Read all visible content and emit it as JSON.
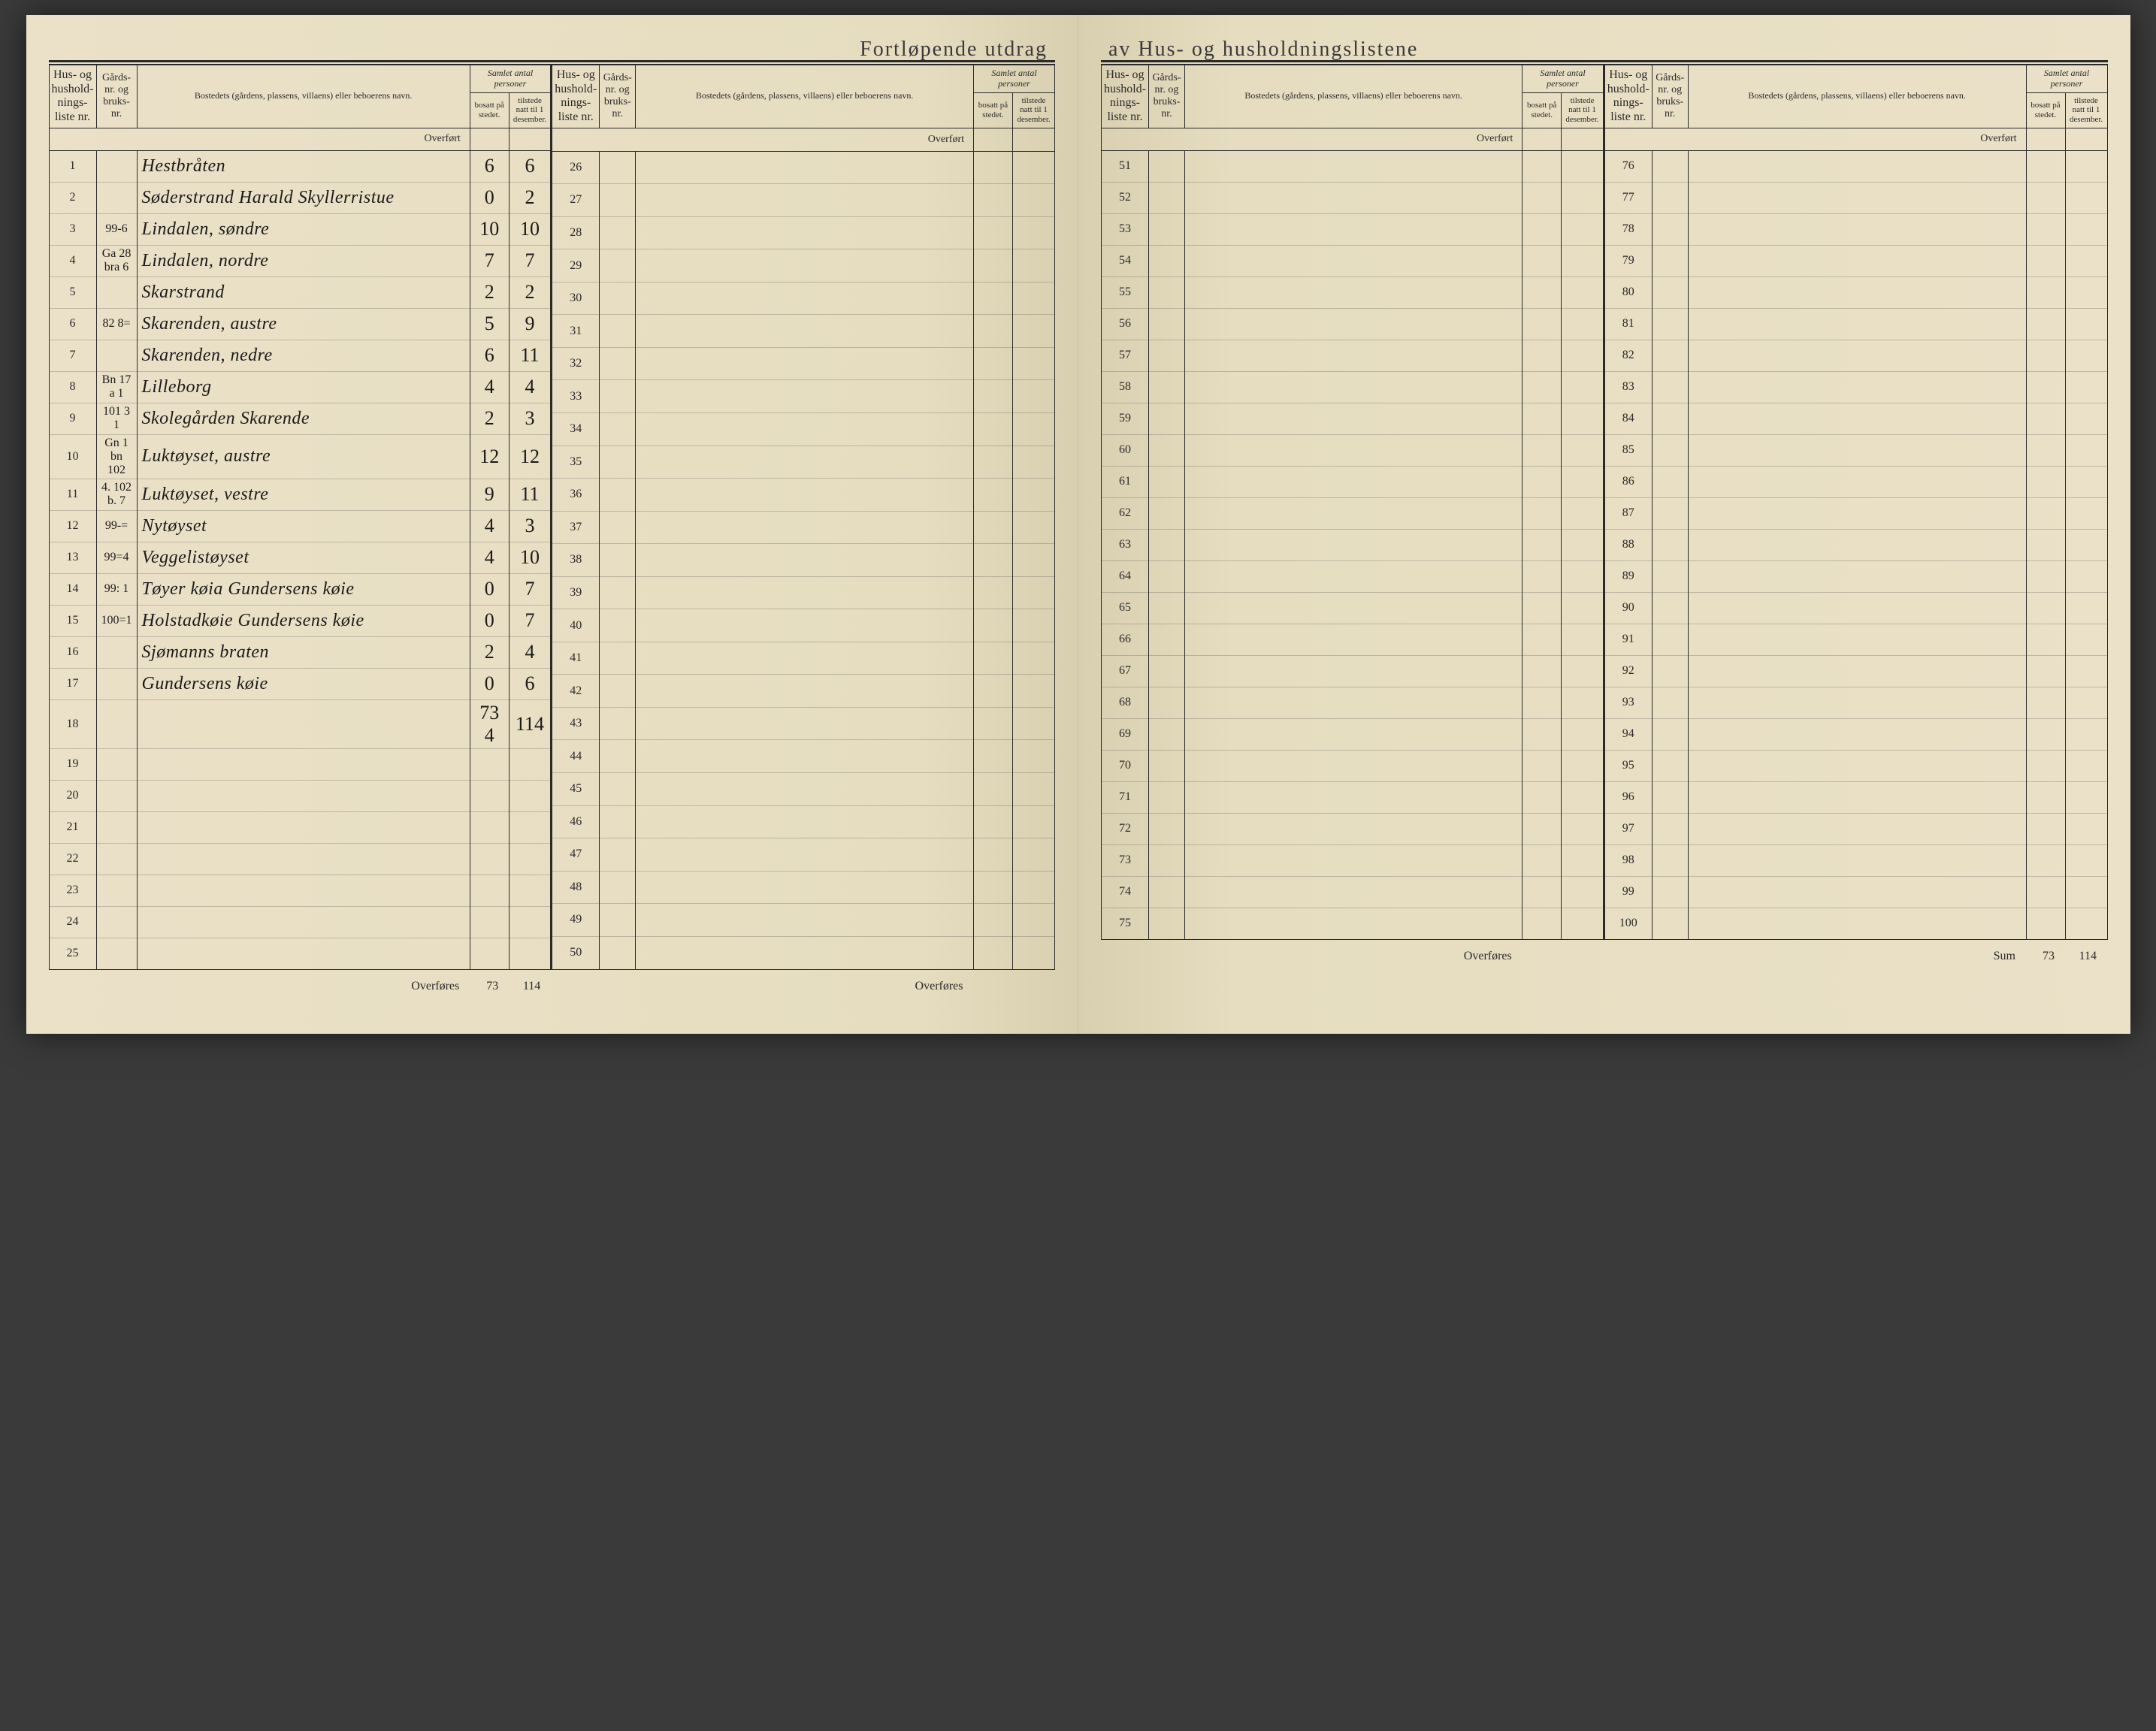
{
  "title_left": "Fortløpende utdrag",
  "title_right": "av Hus- og husholdningslistene",
  "headers": {
    "liste": "Hus- og hushold-nings-liste nr.",
    "gard": "Gårds-nr. og bruks-nr.",
    "bosted": "Bostedets (gårdens, plassens, villaens) eller beboerens navn.",
    "samlet": "Samlet antal personer",
    "bosatt": "bosatt på stedet.",
    "tilstede": "tilstede natt til 1 desember."
  },
  "labels": {
    "overfort": "Overført",
    "overfores": "Overføres",
    "sum": "Sum"
  },
  "left_a": {
    "rows": [
      {
        "n": "1",
        "g": "",
        "name": "Hestbråten",
        "b": "6",
        "t": "6"
      },
      {
        "n": "2",
        "g": "",
        "name": "Søderstrand Harald Skyllerristue",
        "b": "0",
        "t": "2"
      },
      {
        "n": "3",
        "g": "99-6",
        "name": "Lindalen, søndre",
        "b": "10",
        "t": "10"
      },
      {
        "n": "4",
        "g": "Ga 28 bra 6",
        "name": "Lindalen, nordre",
        "b": "7",
        "t": "7"
      },
      {
        "n": "5",
        "g": "",
        "name": "Skarstrand",
        "b": "2",
        "t": "2"
      },
      {
        "n": "6",
        "g": "82 8=",
        "name": "Skarenden, austre",
        "b": "5",
        "t": "9"
      },
      {
        "n": "7",
        "g": "",
        "name": "Skarenden, nedre",
        "b": "6",
        "t": "11"
      },
      {
        "n": "8",
        "g": "Bn 17 a 1",
        "name": "Lilleborg",
        "b": "4",
        "t": "4"
      },
      {
        "n": "9",
        "g": "101 3 1",
        "name": "Skolegården Skarende",
        "b": "2",
        "t": "3"
      },
      {
        "n": "10",
        "g": "Gn 1 bn 102",
        "name": "Luktøyset, austre",
        "b": "12",
        "t": "12"
      },
      {
        "n": "11",
        "g": "4. 102 b. 7",
        "name": "Luktøyset, vestre",
        "b": "9",
        "t": "11"
      },
      {
        "n": "12",
        "g": "99-=",
        "name": "Nytøyset",
        "b": "4",
        "t": "3"
      },
      {
        "n": "13",
        "g": "99=4",
        "name": "Veggelistøyset",
        "b": "4",
        "t": "10"
      },
      {
        "n": "14",
        "g": "99: 1",
        "name": "Tøyer køia Gundersens køie",
        "b": "0",
        "t": "7"
      },
      {
        "n": "15",
        "g": "100=1",
        "name": "Holstadkøie Gundersens køie",
        "b": "0",
        "t": "7"
      },
      {
        "n": "16",
        "g": "",
        "name": "Sjømanns braten",
        "b": "2",
        "t": "4"
      },
      {
        "n": "17",
        "g": "",
        "name": "Gundersens køie",
        "b": "0",
        "t": "6"
      },
      {
        "n": "18",
        "g": "",
        "name": "",
        "b": "73 4",
        "t": "114"
      },
      {
        "n": "19",
        "g": "",
        "name": "",
        "b": "",
        "t": ""
      },
      {
        "n": "20",
        "g": "",
        "name": "",
        "b": "",
        "t": ""
      },
      {
        "n": "21",
        "g": "",
        "name": "",
        "b": "",
        "t": ""
      },
      {
        "n": "22",
        "g": "",
        "name": "",
        "b": "",
        "t": ""
      },
      {
        "n": "23",
        "g": "",
        "name": "",
        "b": "",
        "t": ""
      },
      {
        "n": "24",
        "g": "",
        "name": "",
        "b": "",
        "t": ""
      },
      {
        "n": "25",
        "g": "",
        "name": "",
        "b": "",
        "t": ""
      }
    ],
    "foot_b": "73",
    "foot_t": "114"
  },
  "left_b": {
    "rows": [
      {
        "n": "26"
      },
      {
        "n": "27"
      },
      {
        "n": "28"
      },
      {
        "n": "29"
      },
      {
        "n": "30"
      },
      {
        "n": "31"
      },
      {
        "n": "32"
      },
      {
        "n": "33"
      },
      {
        "n": "34"
      },
      {
        "n": "35"
      },
      {
        "n": "36"
      },
      {
        "n": "37"
      },
      {
        "n": "38"
      },
      {
        "n": "39"
      },
      {
        "n": "40"
      },
      {
        "n": "41"
      },
      {
        "n": "42"
      },
      {
        "n": "43"
      },
      {
        "n": "44"
      },
      {
        "n": "45"
      },
      {
        "n": "46"
      },
      {
        "n": "47"
      },
      {
        "n": "48"
      },
      {
        "n": "49"
      },
      {
        "n": "50"
      }
    ]
  },
  "right_a": {
    "rows": [
      {
        "n": "51"
      },
      {
        "n": "52"
      },
      {
        "n": "53"
      },
      {
        "n": "54"
      },
      {
        "n": "55"
      },
      {
        "n": "56"
      },
      {
        "n": "57"
      },
      {
        "n": "58"
      },
      {
        "n": "59"
      },
      {
        "n": "60"
      },
      {
        "n": "61"
      },
      {
        "n": "62"
      },
      {
        "n": "63"
      },
      {
        "n": "64"
      },
      {
        "n": "65"
      },
      {
        "n": "66"
      },
      {
        "n": "67"
      },
      {
        "n": "68"
      },
      {
        "n": "69"
      },
      {
        "n": "70"
      },
      {
        "n": "71"
      },
      {
        "n": "72"
      },
      {
        "n": "73"
      },
      {
        "n": "74"
      },
      {
        "n": "75"
      }
    ]
  },
  "right_b": {
    "rows": [
      {
        "n": "76"
      },
      {
        "n": "77"
      },
      {
        "n": "78"
      },
      {
        "n": "79"
      },
      {
        "n": "80"
      },
      {
        "n": "81"
      },
      {
        "n": "82"
      },
      {
        "n": "83"
      },
      {
        "n": "84"
      },
      {
        "n": "85"
      },
      {
        "n": "86"
      },
      {
        "n": "87"
      },
      {
        "n": "88"
      },
      {
        "n": "89"
      },
      {
        "n": "90"
      },
      {
        "n": "91"
      },
      {
        "n": "92"
      },
      {
        "n": "93"
      },
      {
        "n": "94"
      },
      {
        "n": "95"
      },
      {
        "n": "96"
      },
      {
        "n": "97"
      },
      {
        "n": "98"
      },
      {
        "n": "99"
      },
      {
        "n": "100"
      }
    ],
    "sum_b": "73",
    "sum_t": "114"
  }
}
